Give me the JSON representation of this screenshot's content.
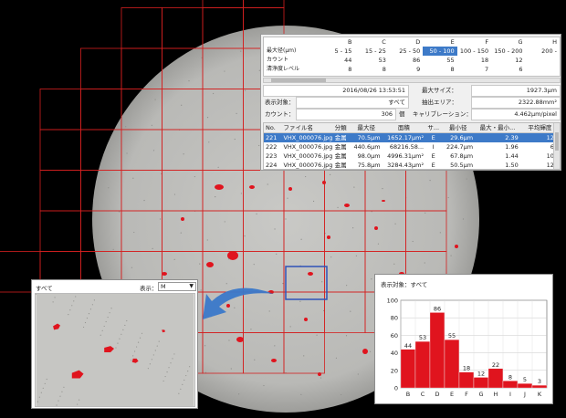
{
  "summary": {
    "size_table": {
      "rows": [
        {
          "label": "",
          "cells": [
            "B",
            "C",
            "D",
            "E",
            "F",
            "G",
            "H"
          ]
        },
        {
          "label": "最大径(µm)",
          "cells": [
            "5 - 15",
            "15 - 25",
            "25 - 50",
            "50 - 100",
            "100 - 150",
            "150 - 200",
            "200 -"
          ]
        },
        {
          "label": "カウント",
          "cells": [
            "44",
            "53",
            "86",
            "55",
            "18",
            "12",
            ""
          ]
        },
        {
          "label": "清浄度レベル",
          "cells": [
            "8",
            "8",
            "9",
            "8",
            "7",
            "6",
            ""
          ]
        }
      ],
      "selected_column": 3
    },
    "datetime": "2016/08/26 13:53:51",
    "max_size_label": "最大サイズ：",
    "max_size_value": "1927.3µm",
    "target_label": "表示対象：",
    "target_value": "すべて",
    "area_label": "抽出エリア：",
    "area_value": "2322.88mm²",
    "count_label": "カウント：",
    "count_value": "306",
    "count_unit": "個",
    "calib_label": "キャリブレーション：",
    "calib_value": "4.462µm/pixel",
    "data_table": {
      "headers": [
        "No.",
        "ファイル名",
        "分類",
        "最大径",
        "面積",
        "サ...",
        "最小径",
        "最大・最小...",
        "平均輝度"
      ],
      "rows": [
        [
          "221",
          "VHX_000076.jpg",
          "金属",
          "70.5µm",
          "1652.17µm²",
          "E",
          "29.6µm",
          "2.39",
          "123"
        ],
        [
          "222",
          "VHX_000076.jpg",
          "金属",
          "440.6µm",
          "68216.58...",
          "I",
          "224.7µm",
          "1.96",
          "65"
        ],
        [
          "223",
          "VHX_000076.jpg",
          "金属",
          "98.0µm",
          "4996.31µm²",
          "E",
          "67.8µm",
          "1.44",
          "101"
        ],
        [
          "224",
          "VHX_000076.jpg",
          "金属",
          "75.8µm",
          "3284.43µm²",
          "E",
          "50.5µm",
          "1.50",
          "120"
        ]
      ],
      "selected_row": 0
    }
  },
  "zoom": {
    "title": "すべて",
    "display_label": "表示：",
    "display_value": "M"
  },
  "histogram": {
    "title": "表示対象：すべて"
  },
  "chart_data": {
    "type": "bar",
    "categories": [
      "B",
      "C",
      "D",
      "E",
      "F",
      "G",
      "H",
      "I",
      "J",
      "K"
    ],
    "values": [
      44,
      53,
      86,
      55,
      18,
      12,
      22,
      8,
      5,
      3
    ],
    "ylim": [
      0,
      100
    ],
    "yticks": [
      0,
      20,
      40,
      60,
      80,
      100
    ],
    "grid": true,
    "bar_color": "#e0141e"
  },
  "colors": {
    "grid_red": "#d42020",
    "selection_blue": "#3d7ac8",
    "arrow_blue": "#3a78c9"
  }
}
